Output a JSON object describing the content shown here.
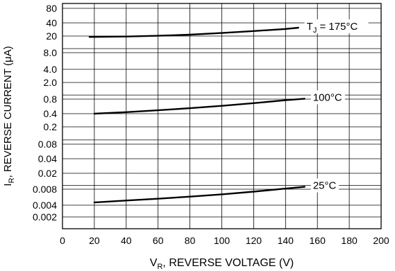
{
  "chart_data": {
    "type": "line",
    "xlabel": {
      "main": "V",
      "sub": "R",
      "rest": ", REVERSE VOLTAGE (V)"
    },
    "ylabel": {
      "main": "I",
      "sub": "R",
      "rest": ", REVERSE CURRENT (μA)"
    },
    "xlim": [
      0,
      200
    ],
    "ylim": [
      0.001,
      100
    ],
    "y_scale": "log",
    "grid": true,
    "x_ticks": [
      "0",
      "20",
      "40",
      "60",
      "80",
      "100",
      "120",
      "140",
      "160",
      "180",
      "200"
    ],
    "y_ticks": [
      "80",
      "40",
      "20",
      "8.0",
      "4.0",
      "2.0",
      "0.8",
      "0.4",
      "0.2",
      "0.08",
      "0.04",
      "0.02",
      "0.008",
      "0.004",
      "0.002"
    ],
    "series": [
      {
        "label_parts": [
          "T",
          "J",
          " = 175°C"
        ],
        "x": [
          17,
          40,
          60,
          80,
          100,
          120,
          140,
          148
        ],
        "y": [
          19,
          19.5,
          20.3,
          21.5,
          23.5,
          26,
          29,
          31
        ]
      },
      {
        "label_parts": [
          "100°C"
        ],
        "x": [
          20,
          40,
          60,
          80,
          100,
          120,
          140,
          152
        ],
        "y": [
          0.4,
          0.43,
          0.47,
          0.52,
          0.58,
          0.66,
          0.76,
          0.82
        ]
      },
      {
        "label_parts": [
          "25°C"
        ],
        "x": [
          20,
          40,
          60,
          80,
          100,
          120,
          140,
          152
        ],
        "y": [
          0.0045,
          0.0049,
          0.0053,
          0.0058,
          0.0064,
          0.0072,
          0.0083,
          0.0092
        ]
      }
    ]
  }
}
